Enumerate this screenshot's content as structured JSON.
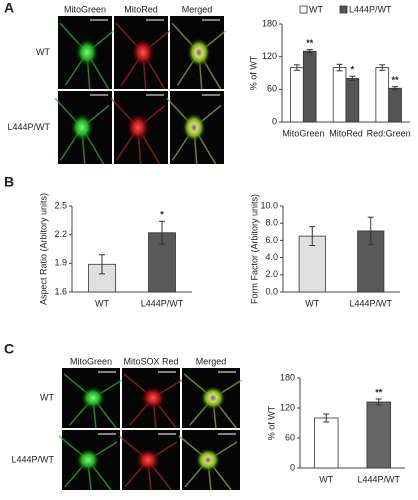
{
  "figure": {
    "panel_labels": [
      "A",
      "B",
      "C"
    ],
    "panel_a_images": {
      "columns": [
        "MitoGreen",
        "MitoRed",
        "Merged"
      ],
      "rows": [
        "WT",
        "L444P/WT"
      ]
    },
    "panel_c_images": {
      "columns": [
        "MitoGreen",
        "MitoSOX Red",
        "Merged"
      ],
      "rows": [
        "WT",
        "L444P/WT"
      ]
    }
  },
  "chart_data": [
    {
      "type": "bar",
      "ylabel": "% of WT",
      "categories": [
        "MitoGreen",
        "MitoRed",
        "Red:Green"
      ],
      "series": [
        {
          "name": "WT",
          "color": "#ffffff",
          "values": [
            100,
            100,
            100
          ],
          "errors": [
            5,
            6,
            5
          ],
          "annotations": [
            null,
            null,
            null
          ]
        },
        {
          "name": "L444P/WT",
          "color": "#555555",
          "values": [
            130,
            80,
            62
          ],
          "errors": [
            3,
            4,
            3
          ],
          "annotations": [
            "**",
            "*",
            "**"
          ]
        }
      ],
      "ylim": [
        0,
        180
      ],
      "yticks": [
        0,
        60,
        120,
        180
      ],
      "legend": "top"
    },
    {
      "type": "bar",
      "ylabel": "Aspect Ratio (Arbitory units)",
      "categories": [
        "WT",
        "L444P/WT"
      ],
      "values": [
        1.89,
        2.22
      ],
      "errors": [
        0.1,
        0.12
      ],
      "colors": [
        "#e0e0e0",
        "#595959"
      ],
      "annotations": [
        null,
        "*"
      ],
      "ylim": [
        1.6,
        2.5
      ],
      "yticks": [
        1.6,
        1.9,
        2.2,
        2.5
      ]
    },
    {
      "type": "bar",
      "ylabel": "Form Factor (Arbitory units)",
      "categories": [
        "WT",
        "L444P/WT"
      ],
      "values": [
        6.5,
        7.1
      ],
      "errors": [
        1.1,
        1.6
      ],
      "colors": [
        "#e0e0e0",
        "#595959"
      ],
      "annotations": [
        null,
        null
      ],
      "ylim": [
        0,
        10
      ],
      "yticks": [
        {
          "value": 0,
          "label": "0.0"
        },
        {
          "value": 2,
          "label": "2.0"
        },
        {
          "value": 4,
          "label": "4.0"
        },
        {
          "value": 6,
          "label": "6.0"
        },
        {
          "value": 8,
          "label": "8.0"
        },
        {
          "value": 10,
          "label": "10.0"
        }
      ]
    },
    {
      "type": "bar",
      "ylabel": "% of WT",
      "categories": [
        "WT",
        "L444P/WT"
      ],
      "values": [
        100,
        132
      ],
      "errors": [
        8,
        6
      ],
      "colors": [
        "#ffffff",
        "#666666"
      ],
      "annotations": [
        null,
        "**"
      ],
      "ylim": [
        0,
        180
      ],
      "yticks": [
        0,
        60,
        120,
        180
      ]
    }
  ]
}
